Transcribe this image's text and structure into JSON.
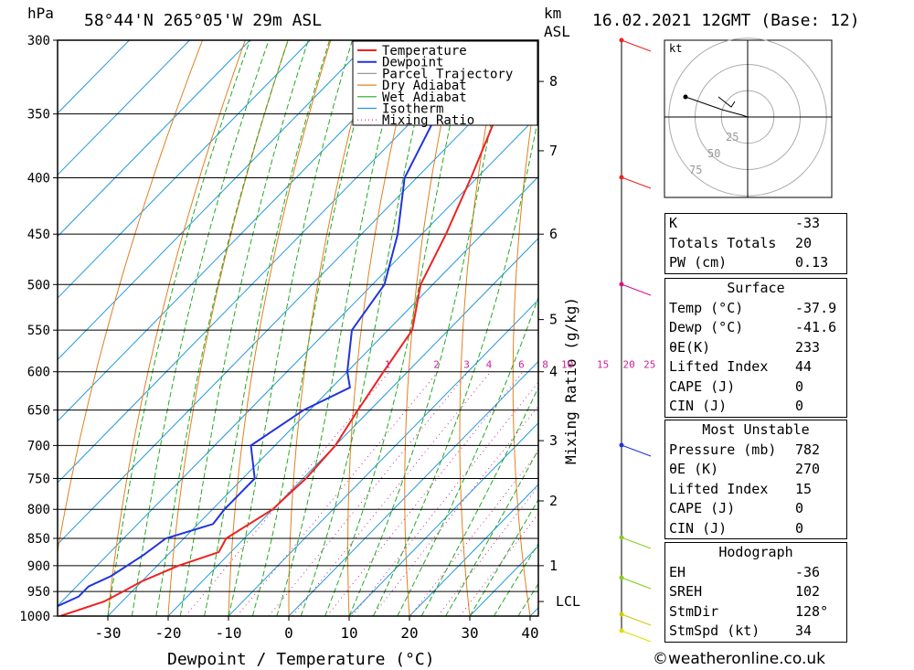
{
  "header": {
    "location": "58°44'N  265°05'W  29m  ASL",
    "datetime": "16.02.2021  12GMT  (Base: 12)",
    "pressure_unit": "hPa",
    "height_unit_top": "km",
    "height_unit_bottom": "ASL"
  },
  "legend": [
    "Temperature",
    "Dewpoint",
    "Parcel Trajectory",
    "Dry Adiabat",
    "Wet Adiabat",
    "Isotherm",
    "Mixing Ratio"
  ],
  "colors": {
    "temperature": "#ee2222",
    "dewpoint": "#2233dd",
    "parcel": "#999999",
    "dry": "#e08020",
    "wet": "#22aa22",
    "iso": "#2299dd",
    "mix": "#cc2299"
  },
  "chart_data": {
    "type": "skew-t",
    "xlabel": "Dewpoint / Temperature (°C)",
    "ylabel_right": "Mixing Ratio (g/kg)",
    "pressure_levels": [
      300,
      350,
      400,
      450,
      500,
      550,
      600,
      650,
      700,
      750,
      800,
      850,
      900,
      950,
      1000
    ],
    "x_ticks": [
      -30,
      -20,
      -10,
      0,
      10,
      20,
      30,
      40
    ],
    "km_ticks": [
      {
        "km": "8",
        "p": 327
      },
      {
        "km": "7",
        "p": 378
      },
      {
        "km": "6",
        "p": 450
      },
      {
        "km": "5",
        "p": 538
      },
      {
        "km": "4",
        "p": 600
      },
      {
        "km": "3",
        "p": 693
      },
      {
        "km": "2",
        "p": 786
      },
      {
        "km": "1",
        "p": 900
      },
      {
        "km": "LCL",
        "p": 970
      }
    ],
    "mixing_ratio_labels": [
      "1",
      "2",
      "3",
      "4",
      "6",
      "8",
      "10",
      "15",
      "20",
      "25"
    ],
    "temperature": [
      [
        1000,
        -37.9
      ],
      [
        970,
        -33
      ],
      [
        950,
        -31.5
      ],
      [
        930,
        -30
      ],
      [
        900,
        -26.5
      ],
      [
        875,
        -22
      ],
      [
        850,
        -23
      ],
      [
        800,
        -20
      ],
      [
        775,
        -19.8
      ],
      [
        750,
        -19.5
      ],
      [
        700,
        -20
      ],
      [
        650,
        -22
      ],
      [
        600,
        -24
      ],
      [
        550,
        -26
      ],
      [
        500,
        -32
      ],
      [
        450,
        -36
      ],
      [
        400,
        -41
      ],
      [
        350,
        -47
      ],
      [
        325,
        -45
      ],
      [
        300,
        -45
      ]
    ],
    "dewpoint": [
      [
        1000,
        -41.6
      ],
      [
        980,
        -40
      ],
      [
        960,
        -38
      ],
      [
        940,
        -38
      ],
      [
        920,
        -36
      ],
      [
        880,
        -34
      ],
      [
        850,
        -33
      ],
      [
        825,
        -27.5
      ],
      [
        800,
        -28
      ],
      [
        775,
        -28
      ],
      [
        750,
        -28
      ],
      [
        700,
        -34
      ],
      [
        650,
        -31
      ],
      [
        620,
        -27
      ],
      [
        600,
        -30
      ],
      [
        550,
        -36
      ],
      [
        500,
        -38
      ],
      [
        450,
        -44
      ],
      [
        400,
        -52
      ],
      [
        350,
        -57
      ],
      [
        325,
        -53
      ],
      [
        300,
        -53
      ]
    ]
  },
  "hodograph": {
    "unit": "kt",
    "rings": [
      "25",
      "50",
      "75"
    ]
  },
  "indices": {
    "top": [
      {
        "label": "K",
        "value": "-33"
      },
      {
        "label": "Totals Totals",
        "value": "20"
      },
      {
        "label": "PW (cm)",
        "value": "0.13"
      }
    ],
    "surface_title": "Surface",
    "surface": [
      {
        "label": "Temp (°C)",
        "value": "-37.9"
      },
      {
        "label": "Dewp (°C)",
        "value": "-41.6"
      },
      {
        "label": "θE(K)",
        "value": "233"
      },
      {
        "label": "Lifted Index",
        "value": "44"
      },
      {
        "label": "CAPE (J)",
        "value": "0"
      },
      {
        "label": "CIN (J)",
        "value": "0"
      }
    ],
    "mu_title": "Most Unstable",
    "mu": [
      {
        "label": "Pressure (mb)",
        "value": "782"
      },
      {
        "label": "θE (K)",
        "value": "270"
      },
      {
        "label": "Lifted Index",
        "value": "15"
      },
      {
        "label": "CAPE (J)",
        "value": "0"
      },
      {
        "label": "CIN (J)",
        "value": "0"
      }
    ],
    "hodo_title": "Hodograph",
    "hodo": [
      {
        "label": "EH",
        "value": "-36"
      },
      {
        "label": "SREH",
        "value": "102"
      },
      {
        "label": "StmDir",
        "value": "128°"
      },
      {
        "label": "StmSpd (kt)",
        "value": "34"
      }
    ]
  },
  "credit": "©weatheronline.co.uk"
}
